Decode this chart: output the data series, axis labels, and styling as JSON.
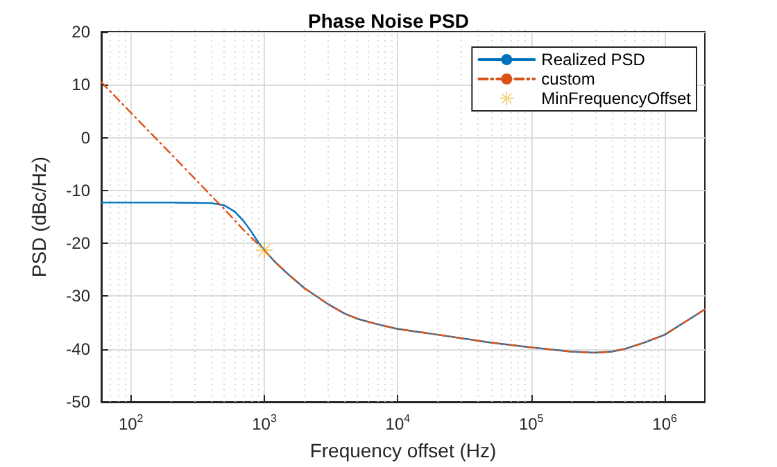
{
  "chart_data": {
    "type": "line",
    "title": "Phase Noise PSD",
    "xlabel": "Frequency offset (Hz)",
    "ylabel": "PSD (dBc/Hz)",
    "log": "x",
    "grid": true,
    "legend": "top right",
    "marker": "none",
    "xlim": [
      60,
      2000000
    ],
    "xticks": [
      {
        "value": 100,
        "label": "10$^{2}$"
      },
      {
        "value": 1000,
        "label": "10$^{3}$"
      },
      {
        "value": 10000,
        "label": "10$^{4}$"
      },
      {
        "value": 100000,
        "label": "10$^{5}$"
      },
      {
        "value": 1000000,
        "label": "10$^{6}$"
      }
    ],
    "ylim": [
      -50,
      20
    ],
    "yticks": [
      -50,
      -40,
      -30,
      -20,
      -10,
      0,
      10,
      20
    ],
    "series": [
      {
        "name": "Realized PSD",
        "color": "#0072bd",
        "line_style": "solid",
        "x": [
          60,
          200,
          400,
          500,
          600,
          700,
          800,
          900,
          1000,
          1200,
          1500,
          2000,
          3000,
          4000,
          5000,
          7000,
          10000,
          20000,
          50000,
          100000,
          200000,
          300000,
          400000,
          500000,
          700000,
          1000000,
          1500000,
          2000000
        ],
        "values": [
          -12.3,
          -12.3,
          -12.4,
          -12.8,
          -14,
          -15.8,
          -17.8,
          -19.8,
          -21.3,
          -23.5,
          -25.8,
          -28.5,
          -31.5,
          -33.3,
          -34.3,
          -35.3,
          -36.2,
          -37.3,
          -38.8,
          -39.7,
          -40.5,
          -40.7,
          -40.5,
          -40,
          -38.8,
          -37.3,
          -34.5,
          -32.5
        ]
      },
      {
        "name": "custom",
        "color": "#d95319",
        "line_style": "dashed",
        "x": [
          60,
          100,
          200,
          400,
          500,
          700,
          1000,
          1200,
          1500,
          2000,
          3000,
          4000,
          5000,
          7000,
          10000,
          20000,
          50000,
          100000,
          200000,
          300000,
          400000,
          500000,
          700000,
          1000000,
          1500000,
          2000000
        ],
        "values": [
          10.5,
          4.7,
          -3.1,
          -11,
          -13.5,
          -17.5,
          -21.3,
          -23.5,
          -25.8,
          -28.5,
          -31.5,
          -33.3,
          -34.3,
          -35.3,
          -36.2,
          -37.3,
          -38.8,
          -39.7,
          -40.5,
          -40.7,
          -40.5,
          -40,
          -38.8,
          -37.3,
          -34.5,
          -32.5
        ]
      },
      {
        "name": "MinFrequencyOffset",
        "type": "scatter",
        "marker": "cross",
        "color": "#edb120",
        "x": [
          1000
        ],
        "values": [
          -21.3
        ]
      }
    ]
  }
}
